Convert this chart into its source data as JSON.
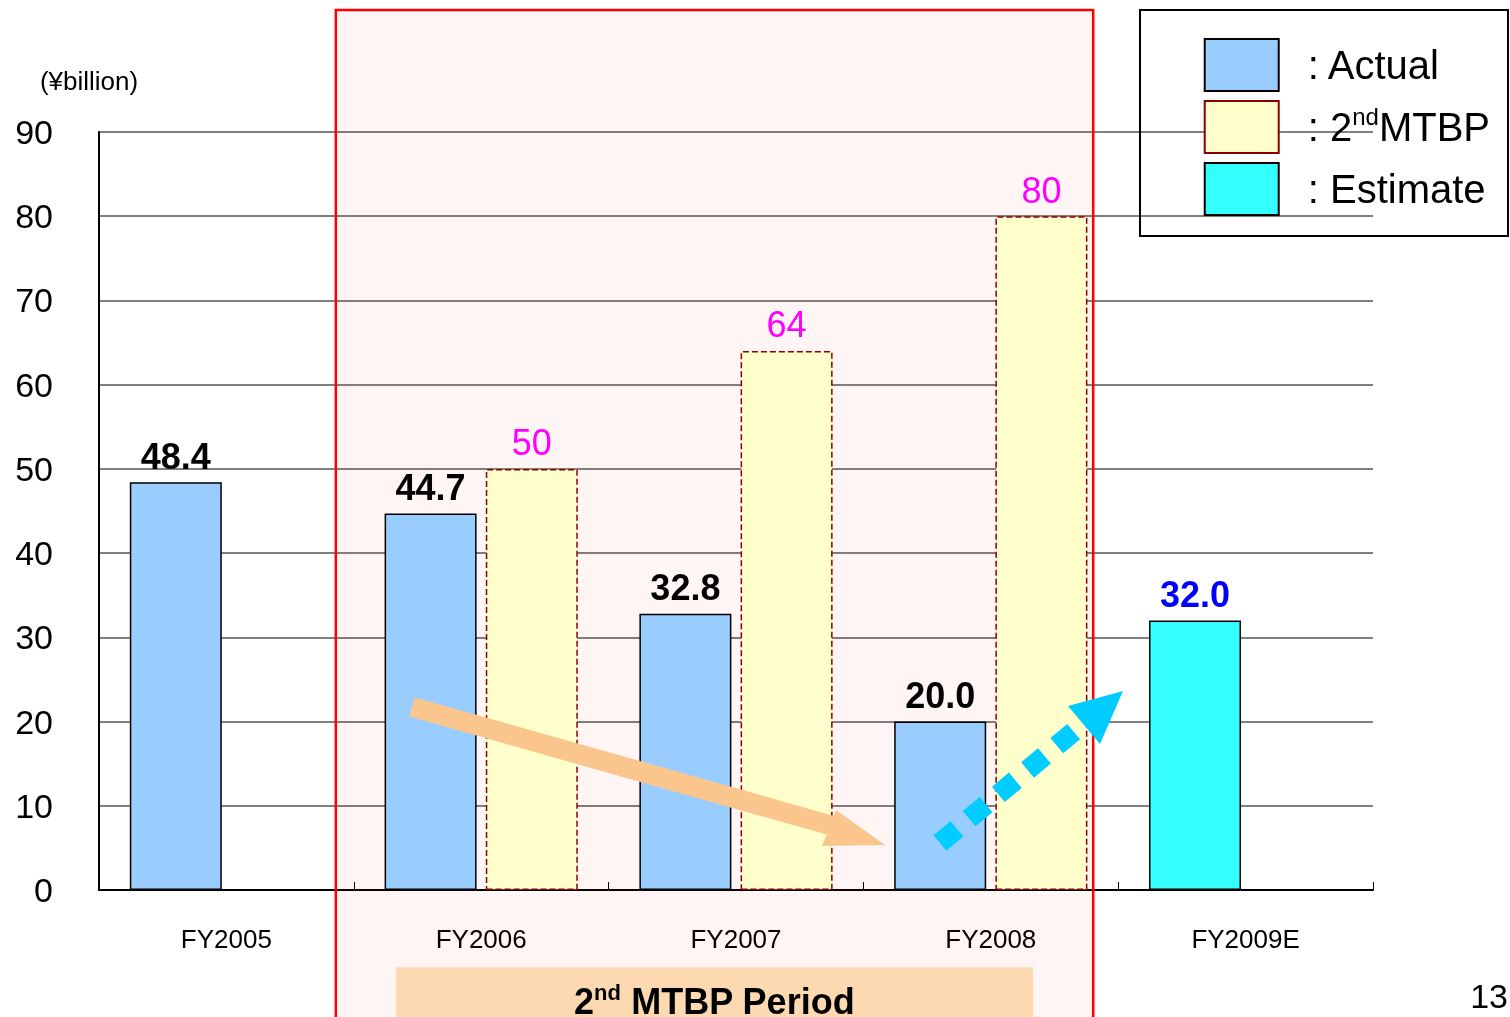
{
  "chart_data": {
    "type": "bar",
    "ylabel": "(¥billion)",
    "categories": [
      "FY2005",
      "FY2006",
      "FY2007",
      "FY2008",
      "FY2009E"
    ],
    "series": [
      {
        "name": ": Actual",
        "color": "#99ccff",
        "values": [
          48.4,
          44.7,
          32.8,
          20.0,
          null
        ],
        "value_labels": [
          "48.4",
          "44.7",
          "32.8",
          "20.0",
          null
        ]
      },
      {
        "name": ": 2$^{nd}$MTBP",
        "color": "#ffffcc",
        "values": [
          null,
          50,
          64,
          80,
          null
        ],
        "value_labels": [
          null,
          "50",
          "64",
          "80",
          null
        ]
      },
      {
        "name": ": Estimate",
        "color": "#33ffff",
        "values": [
          null,
          null,
          null,
          null,
          32.0
        ],
        "value_labels": [
          null,
          null,
          null,
          null,
          "32.0"
        ]
      }
    ],
    "ylim": [
      0,
      90
    ],
    "yticks": [
      0,
      10,
      20,
      30,
      40,
      50,
      60,
      70,
      80,
      90
    ],
    "grid": "y",
    "legend": "top right",
    "bands": [
      {
        "axis": "x",
        "from": "FY2006",
        "to": "FY2008",
        "label": "2$^{nd}$ MTBP Period",
        "color": "#ff0000"
      }
    ],
    "annotations": [
      "13"
    ]
  }
}
